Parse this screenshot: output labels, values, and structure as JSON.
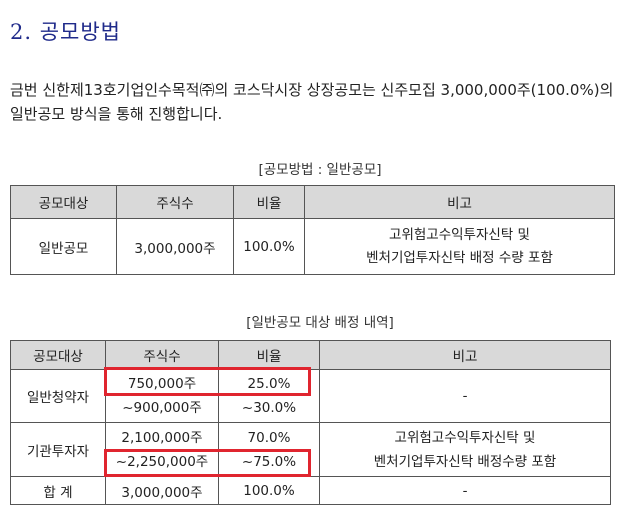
{
  "section": {
    "title": "2. 공모방법",
    "intro": "금번 신한제13호기업인수목적㈜의 코스닥시장 상장공모는 신주모집 3,000,000주(100.0%)의 일반공모 방식을 통해 진행합니다."
  },
  "table1": {
    "caption": "[공모방법 : 일반공모]",
    "headers": [
      "공모대상",
      "주식수",
      "비율",
      "비고"
    ],
    "row": {
      "target": "일반공모",
      "shares": "3,000,000주",
      "ratio": "100.0%",
      "note_line1": "고위험고수익투자신탁 및",
      "note_line2": "벤처기업투자신탁 배정 수량 포함"
    }
  },
  "table2": {
    "caption": "[일반공모 대상 배정 내역]",
    "headers": [
      "공모대상",
      "주식수",
      "비율",
      "비고"
    ],
    "retail": {
      "target": "일반청약자",
      "shares_line1": "750,000주",
      "shares_line2": "~900,000주",
      "ratio_line1": "25.0%",
      "ratio_line2": "~30.0%",
      "note": "-"
    },
    "institutional": {
      "target": "기관투자자",
      "shares_line1": "2,100,000주",
      "shares_line2": "~2,250,000주",
      "ratio_line1": "70.0%",
      "ratio_line2": "~75.0%",
      "note_line1": "고위험고수익투자신탁 및",
      "note_line2": "벤처기업투자신탁 배정수량 포함"
    },
    "total": {
      "target": "합 계",
      "shares": "3,000,000주",
      "ratio": "100.0%",
      "note": "-"
    }
  },
  "highlight_color": "#e0252f"
}
